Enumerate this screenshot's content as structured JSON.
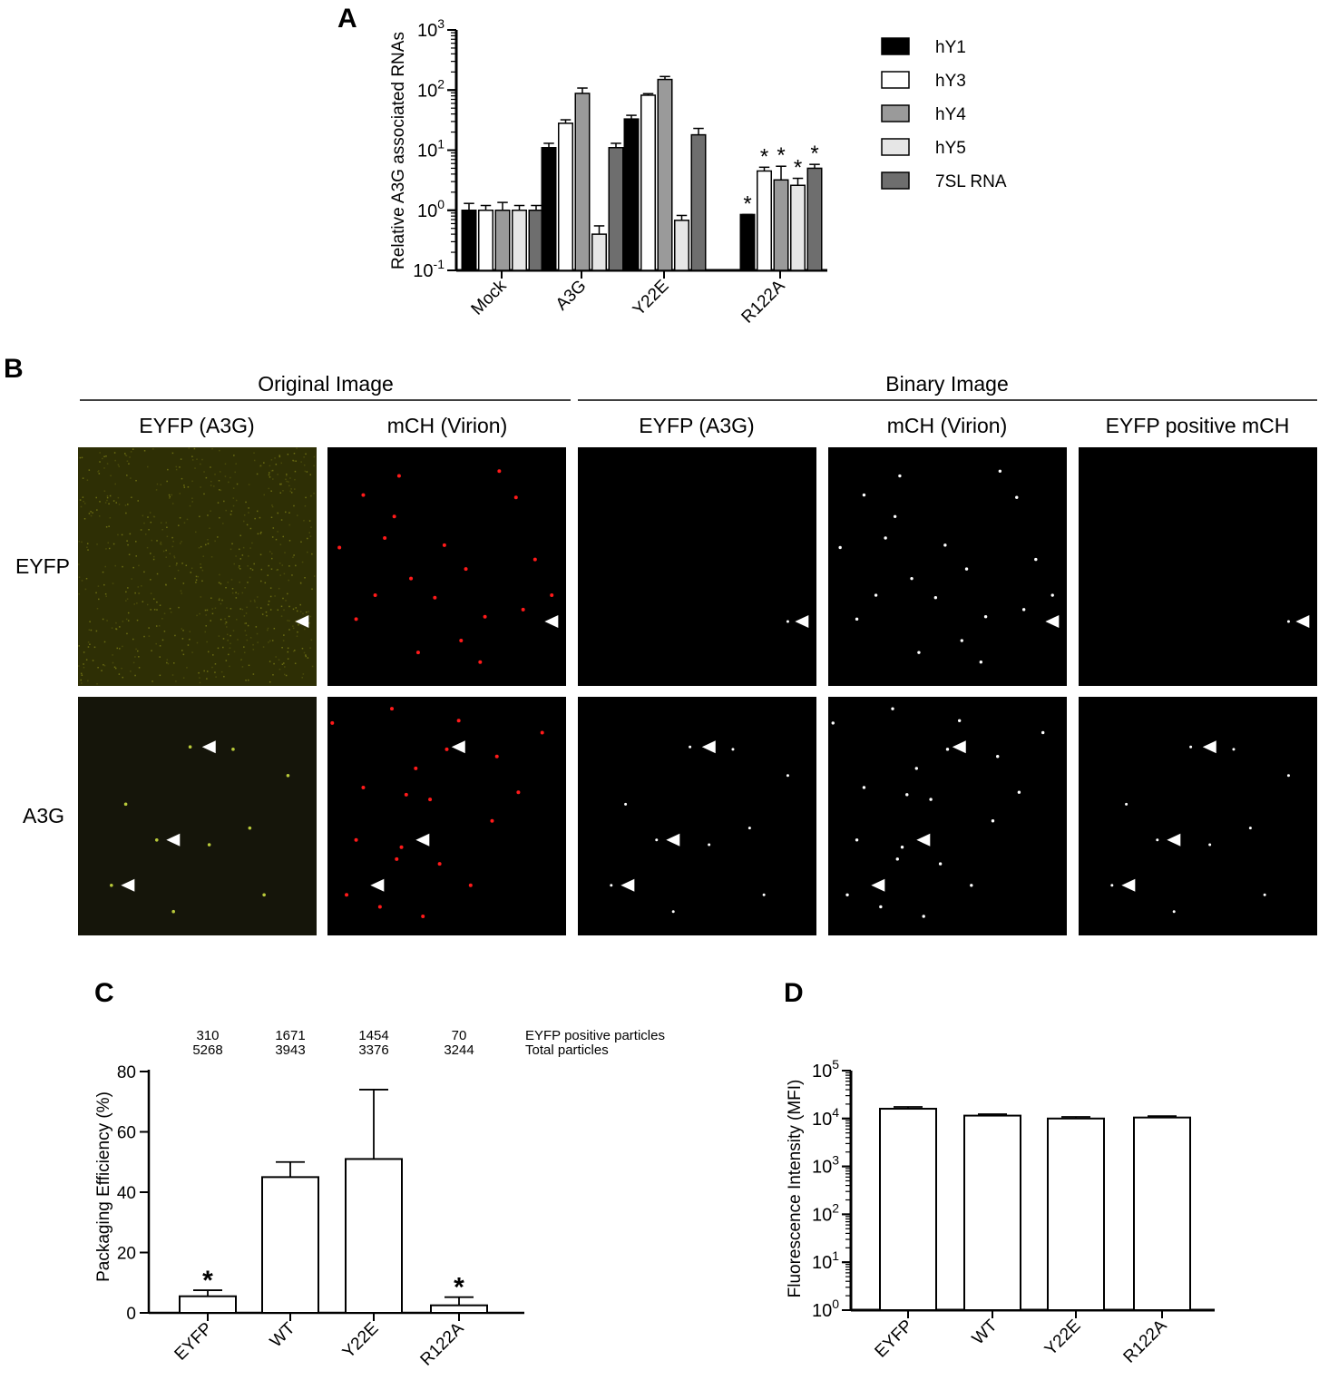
{
  "panel_letters": {
    "a": "A",
    "b": "B",
    "c": "C",
    "d": "D"
  },
  "chart_data": [
    {
      "panel": "A",
      "type": "bar",
      "yscale": "log",
      "ylabel": "Relative A3G associated RNAs",
      "ylim": [
        0.1,
        1000
      ],
      "yticks": [
        "10-1",
        "100",
        "101",
        "102",
        "103"
      ],
      "categories": [
        "Mock",
        "A3G",
        "Y22E",
        "R122A"
      ],
      "series": [
        {
          "name": "hY1",
          "color": "#000000",
          "values": [
            1.0,
            11,
            33,
            0.85
          ],
          "errors": [
            1.3,
            13,
            38,
            0.85
          ]
        },
        {
          "name": "hY3",
          "color": "#ffffff",
          "values": [
            1.0,
            28,
            82,
            4.5
          ],
          "errors": [
            1.2,
            32,
            87,
            5.2
          ]
        },
        {
          "name": "hY4",
          "color": "#9a9a9a",
          "values": [
            1.0,
            88,
            150,
            3.2
          ],
          "errors": [
            1.35,
            108,
            168,
            5.4
          ]
        },
        {
          "name": "hY5",
          "color": "#e6e6e6",
          "values": [
            1.0,
            0.4,
            0.68,
            2.6
          ],
          "errors": [
            1.2,
            0.55,
            0.82,
            3.4
          ]
        },
        {
          "name": "7SL RNA",
          "color": "#6e6e6e",
          "values": [
            1.0,
            11,
            18,
            5.0
          ],
          "errors": [
            1.2,
            13,
            23,
            5.8
          ]
        }
      ],
      "significance": [
        {
          "category": "R122A",
          "series": [
            "hY1",
            "hY3",
            "hY4",
            "hY5",
            "7SL RNA"
          ],
          "mark": "*"
        }
      ],
      "legend": "right"
    },
    {
      "panel": "C",
      "type": "bar",
      "ylabel": "Packaging Efficiency (%)",
      "ylim": [
        0,
        80
      ],
      "yticks": [
        0,
        20,
        40,
        60,
        80
      ],
      "categories": [
        "EYFP",
        "WT",
        "Y22E",
        "R122A"
      ],
      "values": [
        5.5,
        45,
        51,
        2.5
      ],
      "errors": [
        7.5,
        50,
        74,
        5.2
      ],
      "significance": [
        "*",
        "",
        "",
        "*"
      ],
      "count_rows": [
        {
          "label": "EYFP positive particles",
          "values": [
            "310",
            "1671",
            "1454",
            "70"
          ]
        },
        {
          "label": "Total particles",
          "values": [
            "5268",
            "3943",
            "3376",
            "3244"
          ]
        }
      ]
    },
    {
      "panel": "D",
      "type": "bar",
      "yscale": "log",
      "ylabel": "Fluorescence Intensity (MFI)",
      "ylim": [
        1,
        100000
      ],
      "yticks": [
        "100",
        "101",
        "102",
        "103",
        "104",
        "105"
      ],
      "categories": [
        "EYFP",
        "WT",
        "Y22E",
        "R122A"
      ],
      "values": [
        16000,
        11500,
        10000,
        10500
      ],
      "errors": [
        17500,
        12300,
        10800,
        11200
      ]
    }
  ],
  "panel_b": {
    "group_headers": [
      "Original Image",
      "Binary Image"
    ],
    "column_headers": [
      "EYFP (A3G)",
      "mCH (Virion)",
      "EYFP (A3G)",
      "mCH (Virion)",
      "EYFP positive mCH"
    ],
    "row_labels": [
      "EYFP",
      "A3G"
    ]
  }
}
